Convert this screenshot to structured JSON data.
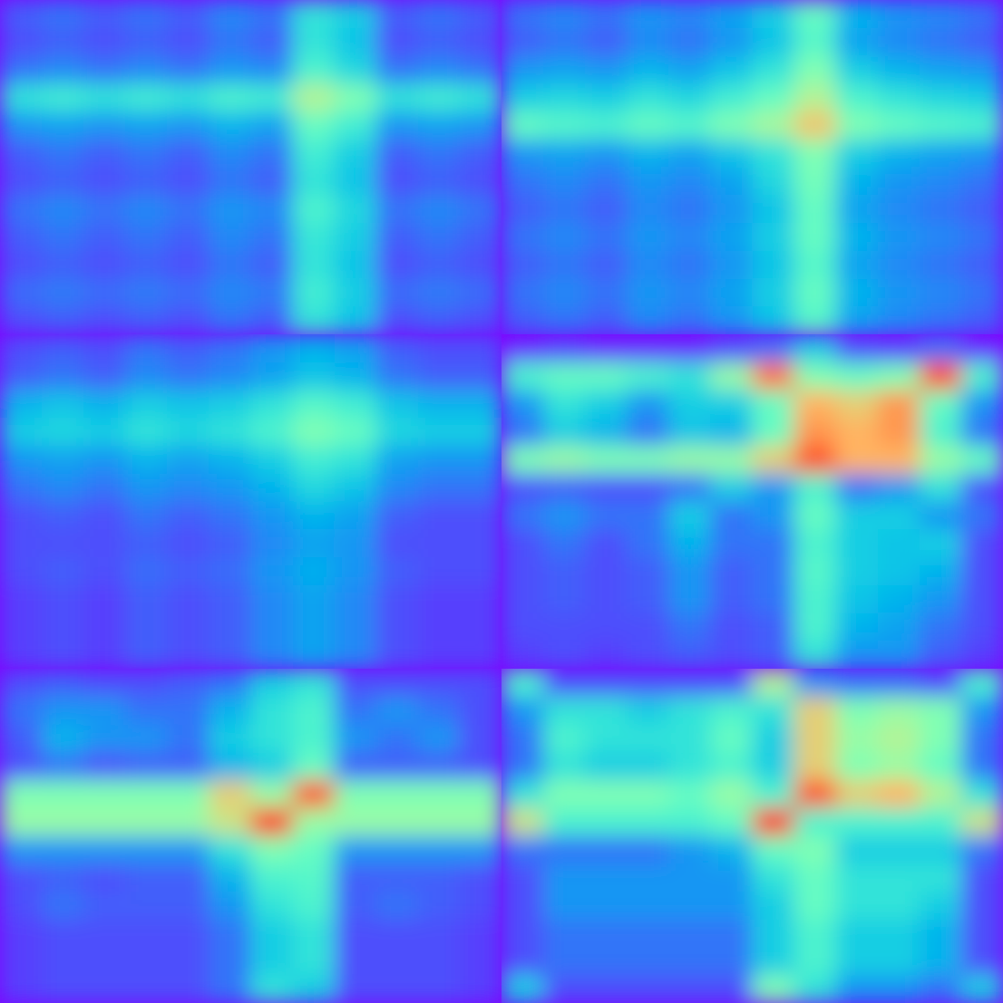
{
  "chart_data": [
    {
      "type": "heatmap",
      "tick_labels": false,
      "color_range": [
        0,
        1
      ],
      "cells": [
        [
          0.12,
          0.15,
          0.12,
          0.15,
          0.12,
          0.18,
          0.15,
          0.35,
          0.3,
          0.12,
          0.15,
          0.12
        ],
        [
          0.1,
          0.12,
          0.1,
          0.12,
          0.1,
          0.15,
          0.12,
          0.35,
          0.28,
          0.1,
          0.12,
          0.1
        ],
        [
          0.15,
          0.18,
          0.15,
          0.18,
          0.15,
          0.2,
          0.18,
          0.4,
          0.32,
          0.15,
          0.18,
          0.15
        ],
        [
          0.35,
          0.38,
          0.35,
          0.38,
          0.35,
          0.4,
          0.38,
          0.6,
          0.5,
          0.35,
          0.38,
          0.35
        ],
        [
          0.2,
          0.22,
          0.2,
          0.22,
          0.2,
          0.25,
          0.22,
          0.45,
          0.38,
          0.2,
          0.22,
          0.2
        ],
        [
          0.12,
          0.15,
          0.12,
          0.15,
          0.12,
          0.18,
          0.15,
          0.38,
          0.3,
          0.12,
          0.15,
          0.12
        ],
        [
          0.1,
          0.12,
          0.1,
          0.12,
          0.1,
          0.15,
          0.12,
          0.35,
          0.28,
          0.1,
          0.12,
          0.1
        ],
        [
          0.15,
          0.18,
          0.15,
          0.18,
          0.15,
          0.2,
          0.18,
          0.4,
          0.32,
          0.15,
          0.18,
          0.15
        ],
        [
          0.12,
          0.15,
          0.12,
          0.15,
          0.12,
          0.18,
          0.15,
          0.36,
          0.3,
          0.12,
          0.15,
          0.12
        ],
        [
          0.1,
          0.12,
          0.1,
          0.12,
          0.1,
          0.15,
          0.12,
          0.35,
          0.28,
          0.1,
          0.12,
          0.1
        ],
        [
          0.14,
          0.16,
          0.14,
          0.16,
          0.14,
          0.18,
          0.16,
          0.38,
          0.3,
          0.14,
          0.16,
          0.14
        ],
        [
          0.1,
          0.12,
          0.1,
          0.12,
          0.1,
          0.15,
          0.12,
          0.35,
          0.28,
          0.1,
          0.12,
          0.1
        ]
      ]
    },
    {
      "type": "heatmap",
      "tick_labels": false,
      "color_range": [
        0,
        1
      ],
      "cells": [
        [
          0.15,
          0.18,
          0.15,
          0.2,
          0.18,
          0.22,
          0.3,
          0.45,
          0.25,
          0.2,
          0.18,
          0.15
        ],
        [
          0.12,
          0.15,
          0.12,
          0.18,
          0.15,
          0.2,
          0.28,
          0.42,
          0.22,
          0.18,
          0.15,
          0.12
        ],
        [
          0.2,
          0.22,
          0.2,
          0.25,
          0.22,
          0.28,
          0.35,
          0.5,
          0.3,
          0.25,
          0.22,
          0.2
        ],
        [
          0.3,
          0.32,
          0.3,
          0.35,
          0.32,
          0.38,
          0.45,
          0.6,
          0.4,
          0.35,
          0.32,
          0.3
        ],
        [
          0.45,
          0.42,
          0.4,
          0.45,
          0.42,
          0.5,
          0.58,
          0.72,
          0.5,
          0.45,
          0.42,
          0.4
        ],
        [
          0.2,
          0.22,
          0.2,
          0.25,
          0.22,
          0.28,
          0.35,
          0.5,
          0.3,
          0.25,
          0.22,
          0.2
        ],
        [
          0.15,
          0.18,
          0.15,
          0.2,
          0.18,
          0.22,
          0.32,
          0.48,
          0.25,
          0.2,
          0.18,
          0.15
        ],
        [
          0.12,
          0.15,
          0.12,
          0.18,
          0.15,
          0.2,
          0.28,
          0.45,
          0.22,
          0.18,
          0.15,
          0.12
        ],
        [
          0.15,
          0.18,
          0.15,
          0.2,
          0.18,
          0.22,
          0.3,
          0.45,
          0.25,
          0.2,
          0.18,
          0.15
        ],
        [
          0.12,
          0.15,
          0.12,
          0.18,
          0.15,
          0.2,
          0.28,
          0.42,
          0.22,
          0.18,
          0.15,
          0.12
        ],
        [
          0.15,
          0.18,
          0.15,
          0.2,
          0.18,
          0.22,
          0.3,
          0.45,
          0.25,
          0.2,
          0.18,
          0.15
        ],
        [
          0.12,
          0.15,
          0.12,
          0.18,
          0.15,
          0.2,
          0.28,
          0.42,
          0.22,
          0.18,
          0.15,
          0.12
        ]
      ]
    },
    {
      "type": "heatmap",
      "tick_labels": false,
      "color_range": [
        0,
        1
      ],
      "cells": [
        [
          0.1,
          0.12,
          0.1,
          0.15,
          0.12,
          0.15,
          0.2,
          0.25,
          0.22,
          0.12,
          0.1,
          0.1
        ],
        [
          0.12,
          0.15,
          0.12,
          0.18,
          0.15,
          0.18,
          0.22,
          0.28,
          0.25,
          0.15,
          0.12,
          0.12
        ],
        [
          0.25,
          0.28,
          0.25,
          0.3,
          0.28,
          0.3,
          0.35,
          0.42,
          0.38,
          0.28,
          0.25,
          0.25
        ],
        [
          0.3,
          0.32,
          0.3,
          0.35,
          0.32,
          0.35,
          0.4,
          0.5,
          0.45,
          0.32,
          0.3,
          0.3
        ],
        [
          0.2,
          0.22,
          0.2,
          0.25,
          0.22,
          0.25,
          0.3,
          0.38,
          0.35,
          0.22,
          0.2,
          0.2
        ],
        [
          0.15,
          0.18,
          0.15,
          0.2,
          0.18,
          0.2,
          0.25,
          0.32,
          0.28,
          0.18,
          0.15,
          0.15
        ],
        [
          0.1,
          0.12,
          0.1,
          0.15,
          0.12,
          0.15,
          0.2,
          0.25,
          0.22,
          0.12,
          0.1,
          0.1
        ],
        [
          0.1,
          0.1,
          0.1,
          0.12,
          0.1,
          0.12,
          0.18,
          0.22,
          0.2,
          0.1,
          0.1,
          0.1
        ],
        [
          0.1,
          0.12,
          0.1,
          0.14,
          0.12,
          0.14,
          0.2,
          0.24,
          0.2,
          0.12,
          0.1,
          0.1
        ],
        [
          0.08,
          0.1,
          0.08,
          0.12,
          0.1,
          0.12,
          0.18,
          0.22,
          0.18,
          0.1,
          0.08,
          0.08
        ],
        [
          0.08,
          0.1,
          0.08,
          0.12,
          0.1,
          0.12,
          0.18,
          0.22,
          0.18,
          0.1,
          0.08,
          0.08
        ],
        [
          0.08,
          0.1,
          0.08,
          0.12,
          0.1,
          0.12,
          0.18,
          0.22,
          0.18,
          0.1,
          0.08,
          0.08
        ]
      ]
    },
    {
      "type": "heatmap",
      "tick_labels": false,
      "color_range": [
        0,
        1
      ],
      "cells": [
        [
          0.05,
          0.08,
          0.05,
          0.05,
          0.05,
          0.1,
          0.15,
          0.3,
          0.1,
          0.08,
          0.15,
          0.05
        ],
        [
          0.4,
          0.45,
          0.45,
          0.4,
          0.35,
          0.55,
          0.85,
          0.5,
          0.45,
          0.5,
          0.9,
          0.4
        ],
        [
          0.2,
          0.35,
          0.3,
          0.2,
          0.3,
          0.3,
          0.45,
          0.75,
          0.7,
          0.8,
          0.45,
          0.2
        ],
        [
          0.15,
          0.3,
          0.25,
          0.15,
          0.28,
          0.25,
          0.45,
          0.8,
          0.75,
          0.8,
          0.4,
          0.15
        ],
        [
          0.5,
          0.55,
          0.5,
          0.5,
          0.55,
          0.55,
          0.7,
          0.9,
          0.75,
          0.75,
          0.55,
          0.45
        ],
        [
          0.1,
          0.12,
          0.1,
          0.1,
          0.15,
          0.3,
          0.2,
          0.4,
          0.15,
          0.2,
          0.35,
          0.1
        ],
        [
          0.15,
          0.2,
          0.15,
          0.15,
          0.3,
          0.15,
          0.2,
          0.45,
          0.3,
          0.3,
          0.2,
          0.15
        ],
        [
          0.1,
          0.15,
          0.1,
          0.15,
          0.25,
          0.15,
          0.15,
          0.4,
          0.3,
          0.28,
          0.3,
          0.1
        ],
        [
          0.1,
          0.12,
          0.1,
          0.12,
          0.2,
          0.12,
          0.15,
          0.42,
          0.3,
          0.28,
          0.25,
          0.1
        ],
        [
          0.1,
          0.12,
          0.1,
          0.12,
          0.2,
          0.12,
          0.15,
          0.4,
          0.28,
          0.25,
          0.2,
          0.1
        ],
        [
          0.1,
          0.1,
          0.1,
          0.1,
          0.15,
          0.1,
          0.12,
          0.4,
          0.25,
          0.22,
          0.15,
          0.1
        ],
        [
          0.08,
          0.1,
          0.08,
          0.1,
          0.12,
          0.1,
          0.12,
          0.35,
          0.2,
          0.2,
          0.12,
          0.08
        ]
      ]
    },
    {
      "type": "heatmap",
      "tick_labels": false,
      "color_range": [
        0,
        1
      ],
      "cells": [
        [
          0.1,
          0.12,
          0.1,
          0.1,
          0.12,
          0.15,
          0.3,
          0.35,
          0.1,
          0.1,
          0.1,
          0.1
        ],
        [
          0.15,
          0.2,
          0.2,
          0.15,
          0.15,
          0.25,
          0.35,
          0.4,
          0.15,
          0.2,
          0.15,
          0.1
        ],
        [
          0.12,
          0.25,
          0.2,
          0.2,
          0.15,
          0.3,
          0.35,
          0.4,
          0.2,
          0.15,
          0.2,
          0.1
        ],
        [
          0.1,
          0.15,
          0.1,
          0.12,
          0.12,
          0.25,
          0.3,
          0.45,
          0.12,
          0.12,
          0.12,
          0.1
        ],
        [
          0.5,
          0.5,
          0.5,
          0.5,
          0.5,
          0.7,
          0.55,
          0.9,
          0.5,
          0.5,
          0.5,
          0.5
        ],
        [
          0.55,
          0.55,
          0.55,
          0.55,
          0.55,
          0.65,
          0.95,
          0.55,
          0.55,
          0.55,
          0.55,
          0.55
        ],
        [
          0.2,
          0.2,
          0.2,
          0.2,
          0.2,
          0.35,
          0.5,
          0.45,
          0.2,
          0.2,
          0.2,
          0.2
        ],
        [
          0.1,
          0.12,
          0.1,
          0.12,
          0.12,
          0.25,
          0.4,
          0.42,
          0.12,
          0.12,
          0.12,
          0.1
        ],
        [
          0.1,
          0.15,
          0.12,
          0.12,
          0.12,
          0.2,
          0.35,
          0.4,
          0.12,
          0.15,
          0.12,
          0.1
        ],
        [
          0.08,
          0.1,
          0.1,
          0.1,
          0.1,
          0.15,
          0.3,
          0.35,
          0.1,
          0.1,
          0.1,
          0.08
        ],
        [
          0.08,
          0.1,
          0.1,
          0.1,
          0.1,
          0.15,
          0.3,
          0.35,
          0.1,
          0.1,
          0.1,
          0.08
        ],
        [
          0.08,
          0.1,
          0.1,
          0.1,
          0.1,
          0.15,
          0.35,
          0.3,
          0.1,
          0.1,
          0.1,
          0.08
        ]
      ]
    },
    {
      "type": "heatmap",
      "tick_labels": false,
      "color_range": [
        0,
        1
      ],
      "cells": [
        [
          0.4,
          0.1,
          0.1,
          0.1,
          0.1,
          0.1,
          0.6,
          0.2,
          0.15,
          0.15,
          0.1,
          0.4
        ],
        [
          0.2,
          0.35,
          0.35,
          0.3,
          0.35,
          0.4,
          0.35,
          0.7,
          0.5,
          0.55,
          0.5,
          0.2
        ],
        [
          0.15,
          0.4,
          0.35,
          0.35,
          0.35,
          0.45,
          0.3,
          0.7,
          0.55,
          0.6,
          0.5,
          0.15
        ],
        [
          0.15,
          0.35,
          0.3,
          0.3,
          0.35,
          0.4,
          0.3,
          0.7,
          0.5,
          0.55,
          0.45,
          0.15
        ],
        [
          0.35,
          0.5,
          0.5,
          0.5,
          0.45,
          0.55,
          0.4,
          0.9,
          0.7,
          0.75,
          0.6,
          0.35
        ],
        [
          0.65,
          0.4,
          0.4,
          0.4,
          0.4,
          0.45,
          0.95,
          0.4,
          0.4,
          0.4,
          0.4,
          0.65
        ],
        [
          0.15,
          0.15,
          0.15,
          0.15,
          0.2,
          0.25,
          0.45,
          0.5,
          0.3,
          0.3,
          0.3,
          0.15
        ],
        [
          0.1,
          0.2,
          0.2,
          0.2,
          0.2,
          0.2,
          0.35,
          0.45,
          0.35,
          0.35,
          0.35,
          0.1
        ],
        [
          0.1,
          0.2,
          0.2,
          0.2,
          0.2,
          0.2,
          0.3,
          0.45,
          0.35,
          0.35,
          0.3,
          0.1
        ],
        [
          0.1,
          0.15,
          0.15,
          0.15,
          0.15,
          0.15,
          0.3,
          0.4,
          0.3,
          0.3,
          0.25,
          0.1
        ],
        [
          0.1,
          0.15,
          0.15,
          0.15,
          0.15,
          0.15,
          0.3,
          0.4,
          0.3,
          0.3,
          0.25,
          0.1
        ],
        [
          0.3,
          0.1,
          0.1,
          0.1,
          0.1,
          0.1,
          0.5,
          0.35,
          0.2,
          0.2,
          0.15,
          0.3
        ]
      ]
    }
  ]
}
